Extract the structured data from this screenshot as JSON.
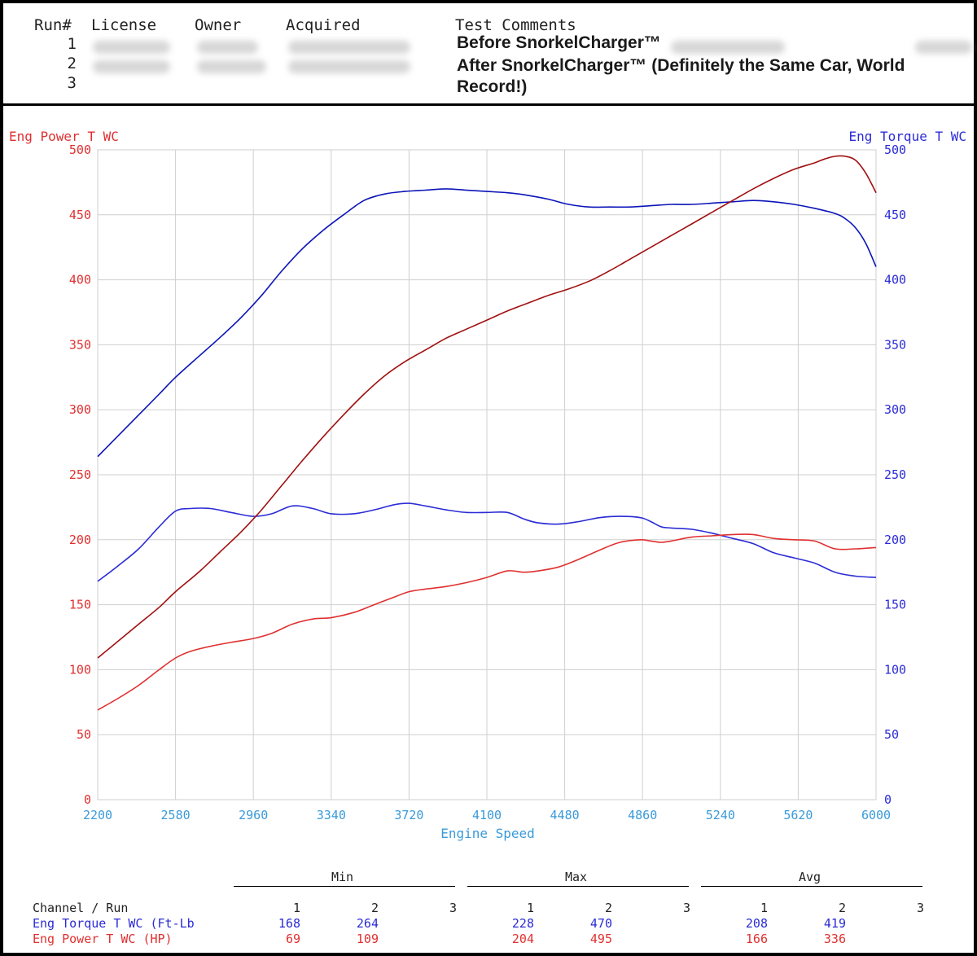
{
  "header": {
    "columns": [
      "Run#",
      "License",
      "Owner",
      "Acquired",
      "Test Comments"
    ],
    "runs": [
      {
        "num": "1",
        "comment": "Before SnorkelCharger™"
      },
      {
        "num": "2",
        "comment": "After SnorkelCharger™ (Definitely the Same Car, World Record!)"
      },
      {
        "num": "3",
        "comment": ""
      }
    ]
  },
  "colors": {
    "power": "#e03030",
    "torque": "#2b2bd6",
    "axis_x": "#3a9ad9",
    "run_power": "#c8102e",
    "run_power_dark": "#a01010",
    "run_torque": "#0b14b8"
  },
  "chart_data": {
    "type": "line",
    "left_axis_label": "Eng Power T WC",
    "right_axis_label": "Eng Torque T WC",
    "xlabel": "Engine Speed",
    "xlim": [
      2200,
      6000
    ],
    "xticks": [
      "2200",
      "2580",
      "2960",
      "3340",
      "3720",
      "4100",
      "4480",
      "4860",
      "5240",
      "5620",
      "6000"
    ],
    "ylim": [
      0,
      500
    ],
    "yticks": [
      "0",
      "50",
      "100",
      "150",
      "200",
      "250",
      "300",
      "350",
      "400",
      "450",
      "500"
    ],
    "grid": true,
    "series": [
      {
        "axis": "torque",
        "run": 1,
        "color_key": "torque",
        "x": [
          2200,
          2300,
          2400,
          2500,
          2580,
          2650,
          2750,
          2850,
          2960,
          3050,
          3150,
          3250,
          3340,
          3450,
          3550,
          3650,
          3720,
          3800,
          3900,
          4000,
          4100,
          4200,
          4280,
          4350,
          4450,
          4550,
          4650,
          4750,
          4850,
          4900,
          4950,
          5000,
          5100,
          5200,
          5300,
          5400,
          5500,
          5600,
          5700,
          5800,
          5900,
          6000
        ],
        "y": [
          168,
          180,
          193,
          210,
          222,
          224,
          224,
          221,
          218,
          220,
          226,
          224,
          220,
          220,
          223,
          227,
          228,
          226,
          223,
          221,
          221,
          221,
          216,
          213,
          212,
          214,
          217,
          218,
          217,
          214,
          210,
          209,
          208,
          205,
          201,
          197,
          190,
          186,
          182,
          175,
          172,
          171
        ]
      },
      {
        "axis": "power",
        "run": 1,
        "color_key": "power",
        "x": [
          2200,
          2300,
          2400,
          2500,
          2580,
          2650,
          2750,
          2850,
          2960,
          3050,
          3150,
          3250,
          3340,
          3450,
          3550,
          3650,
          3720,
          3800,
          3900,
          4000,
          4100,
          4200,
          4280,
          4350,
          4450,
          4550,
          4650,
          4750,
          4850,
          4900,
          4950,
          5000,
          5100,
          5200,
          5300,
          5400,
          5500,
          5600,
          5700,
          5800,
          5900,
          6000
        ],
        "y": [
          69,
          78,
          88,
          100,
          109,
          114,
          118,
          121,
          124,
          128,
          135,
          139,
          140,
          144,
          150,
          156,
          160,
          162,
          164,
          167,
          171,
          176,
          175,
          176,
          179,
          185,
          192,
          198,
          200,
          199,
          198,
          199,
          202,
          203,
          204,
          204,
          201,
          200,
          199,
          193,
          193,
          194
        ]
      },
      {
        "axis": "torque",
        "run": 2,
        "color_key": "run_torque",
        "x": [
          2200,
          2300,
          2400,
          2500,
          2580,
          2700,
          2800,
          2900,
          3000,
          3100,
          3200,
          3300,
          3400,
          3500,
          3600,
          3700,
          3800,
          3900,
          4000,
          4100,
          4200,
          4300,
          4400,
          4500,
          4600,
          4700,
          4800,
          4900,
          5000,
          5100,
          5200,
          5300,
          5400,
          5500,
          5600,
          5700,
          5800,
          5850,
          5900,
          5950,
          6000
        ],
        "y": [
          264,
          280,
          296,
          312,
          325,
          342,
          356,
          371,
          388,
          407,
          424,
          438,
          450,
          461,
          466,
          468,
          469,
          470,
          469,
          468,
          467,
          465,
          462,
          458,
          456,
          456,
          456,
          457,
          458,
          458,
          459,
          460,
          461,
          460,
          458,
          455,
          451,
          447,
          440,
          428,
          410
        ]
      },
      {
        "axis": "power",
        "run": 2,
        "color_key": "run_power_dark",
        "x": [
          2200,
          2300,
          2400,
          2500,
          2580,
          2700,
          2800,
          2900,
          3000,
          3100,
          3200,
          3300,
          3400,
          3500,
          3600,
          3700,
          3800,
          3900,
          4000,
          4100,
          4200,
          4300,
          4400,
          4500,
          4600,
          4700,
          4800,
          4900,
          5000,
          5100,
          5200,
          5300,
          5400,
          5500,
          5600,
          5700,
          5750,
          5800,
          5850,
          5900,
          5950,
          6000
        ],
        "y": [
          109,
          122,
          135,
          148,
          160,
          176,
          191,
          206,
          223,
          242,
          261,
          279,
          296,
          312,
          326,
          337,
          346,
          355,
          362,
          369,
          376,
          382,
          388,
          393,
          399,
          407,
          416,
          425,
          434,
          443,
          452,
          461,
          470,
          478,
          485,
          490,
          493,
          495,
          495,
          492,
          482,
          467
        ]
      }
    ],
    "stats": {
      "groups": [
        "Min",
        "Max",
        "Avg"
      ],
      "channel_header": "Channel / Run",
      "run_labels": [
        "1",
        "2",
        "3"
      ],
      "rows": [
        {
          "label": "Eng Torque T WC (Ft-Lb",
          "color_key": "torque",
          "min": [
            "168",
            "264",
            ""
          ],
          "max": [
            "228",
            "470",
            ""
          ],
          "avg": [
            "208",
            "419",
            ""
          ]
        },
        {
          "label": "Eng Power T WC (HP)",
          "color_key": "power",
          "min": [
            "69",
            "109",
            ""
          ],
          "max": [
            "204",
            "495",
            ""
          ],
          "avg": [
            "166",
            "336",
            ""
          ]
        }
      ]
    }
  }
}
